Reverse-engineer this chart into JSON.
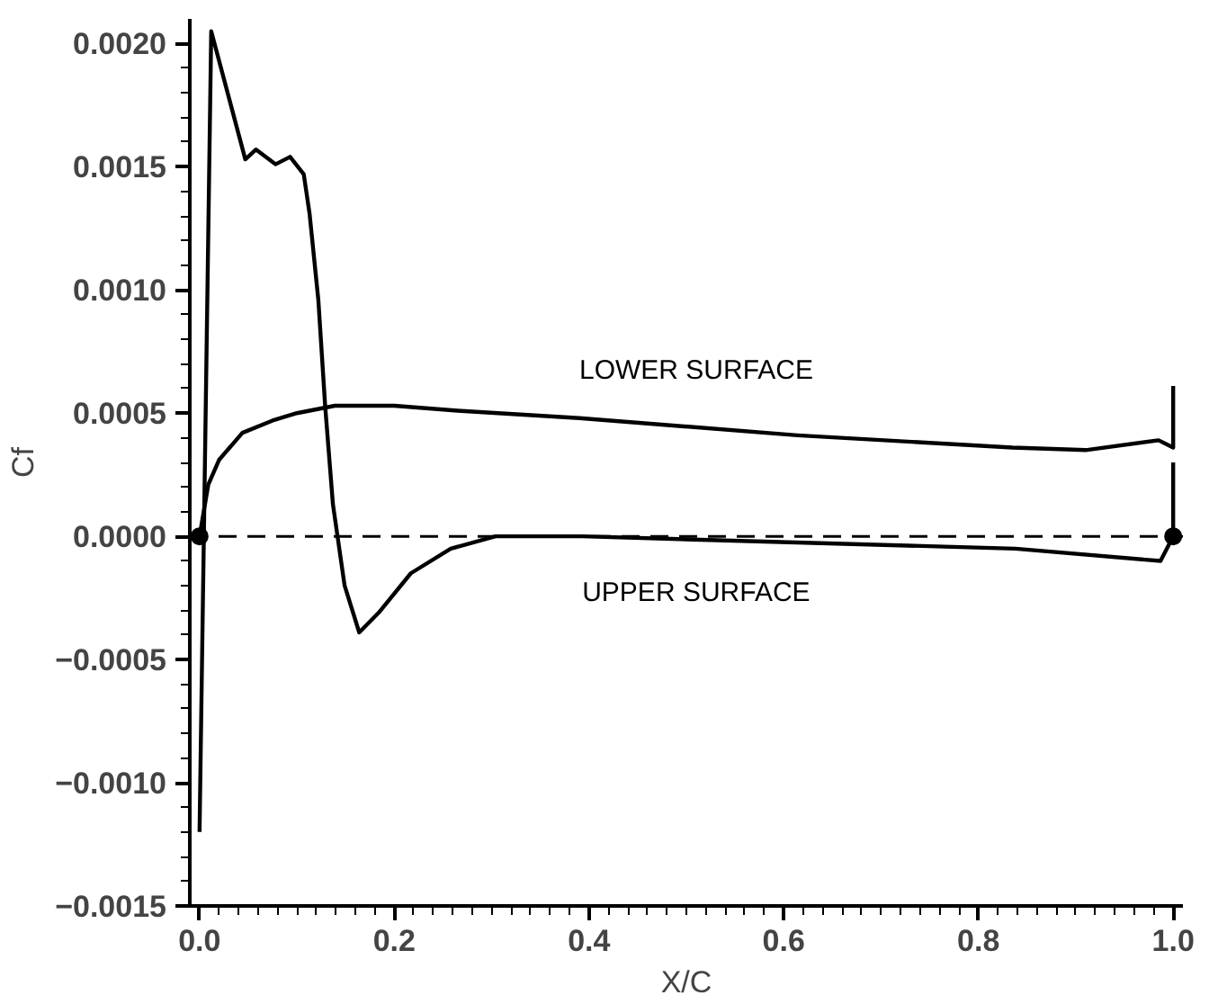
{
  "chart_data": {
    "type": "line",
    "xlabel": "X/C",
    "ylabel": "Cf",
    "xlim": [
      -0.01,
      1.01
    ],
    "ylim": [
      -0.0015,
      0.0021
    ],
    "xticks": [
      {
        "value": 0,
        "label": "0.0"
      },
      {
        "value": 0.2,
        "label": "0.2"
      },
      {
        "value": 0.4,
        "label": "0.4"
      },
      {
        "value": 0.6,
        "label": "0.6"
      },
      {
        "value": 0.8,
        "label": "0.8"
      },
      {
        "value": 1,
        "label": "1.0"
      }
    ],
    "yticks": [
      {
        "value": -0.0015,
        "label": "−0.0015"
      },
      {
        "value": -0.001,
        "label": "−0.0010"
      },
      {
        "value": -0.0005,
        "label": "−0.0005"
      },
      {
        "value": 0,
        "label": "0.0000"
      },
      {
        "value": 0.0005,
        "label": "0.0005"
      },
      {
        "value": 0.001,
        "label": "0.0010"
      },
      {
        "value": 0.0015,
        "label": "0.0015"
      },
      {
        "value": 0.002,
        "label": "0.0020"
      }
    ],
    "grid": false,
    "line_style": "solid",
    "marker": "none",
    "series": [
      {
        "name": "LOWER SURFACE",
        "color": "#000000",
        "x": [
          0,
          0.009,
          0.02,
          0.044,
          0.075,
          0.1,
          0.139,
          0.2,
          0.265,
          0.39,
          0.614,
          0.835,
          0.91,
          0.985,
          1.0,
          1.0
        ],
        "values": [
          0,
          0.00021,
          0.00031,
          0.00042,
          0.00047,
          0.0005,
          0.00053,
          0.00053,
          0.00051,
          0.00048,
          0.00041,
          0.00036,
          0.00035,
          0.00039,
          0.00036,
          0.00061
        ]
      },
      {
        "name": "UPPER SURFACE",
        "color": "#000000",
        "x": [
          0,
          0.012,
          0.047,
          0.058,
          0.078,
          0.093,
          0.107,
          0.113,
          0.122,
          0.129,
          0.137,
          0.149,
          0.164,
          0.184,
          0.217,
          0.258,
          0.304,
          0.35,
          0.393,
          0.838,
          0.987,
          1.0,
          1.0
        ],
        "values": [
          -0.0012,
          0.00205,
          0.00153,
          0.00157,
          0.00151,
          0.00154,
          0.00147,
          0.00131,
          0.00096,
          0.00053,
          0.00013,
          -0.0002,
          -0.00039,
          -0.00031,
          -0.00015,
          -5e-05,
          0,
          0,
          0,
          -5e-05,
          -0.0001,
          0,
          0.0003
        ]
      },
      {
        "type": "scatter",
        "marker": "circle",
        "color": "#000000",
        "x": [
          0,
          1
        ],
        "values": [
          0,
          0
        ]
      }
    ],
    "ref_lines": [
      {
        "axis": "y",
        "value": 0,
        "color": "#000000",
        "line_style": "dashed"
      }
    ]
  }
}
